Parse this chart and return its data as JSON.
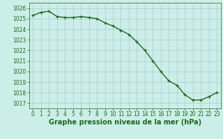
{
  "x": [
    0,
    1,
    2,
    3,
    4,
    5,
    6,
    7,
    8,
    9,
    10,
    11,
    12,
    13,
    14,
    15,
    16,
    17,
    18,
    19,
    20,
    21,
    22,
    23
  ],
  "y": [
    1025.3,
    1025.6,
    1025.7,
    1025.2,
    1025.1,
    1025.1,
    1025.2,
    1025.1,
    1025.0,
    1024.6,
    1024.3,
    1023.9,
    1023.5,
    1022.8,
    1022.0,
    1021.0,
    1020.0,
    1019.1,
    1018.7,
    1017.8,
    1017.3,
    1017.3,
    1017.6,
    1018.0
  ],
  "line_color": "#1a6b1a",
  "marker": "+",
  "marker_size": 3.5,
  "line_width": 1.0,
  "bg_color": "#cceee8",
  "grid_color": "#aacccc",
  "xlabel": "Graphe pression niveau de la mer (hPa)",
  "xlabel_fontsize": 7,
  "tick_fontsize": 5.5,
  "ylim": [
    1016.5,
    1026.5
  ],
  "xlim": [
    -0.5,
    23.5
  ],
  "yticks": [
    1017,
    1018,
    1019,
    1020,
    1021,
    1022,
    1023,
    1024,
    1025,
    1026
  ],
  "xticks": [
    0,
    1,
    2,
    3,
    4,
    5,
    6,
    7,
    8,
    9,
    10,
    11,
    12,
    13,
    14,
    15,
    16,
    17,
    18,
    19,
    20,
    21,
    22,
    23
  ]
}
